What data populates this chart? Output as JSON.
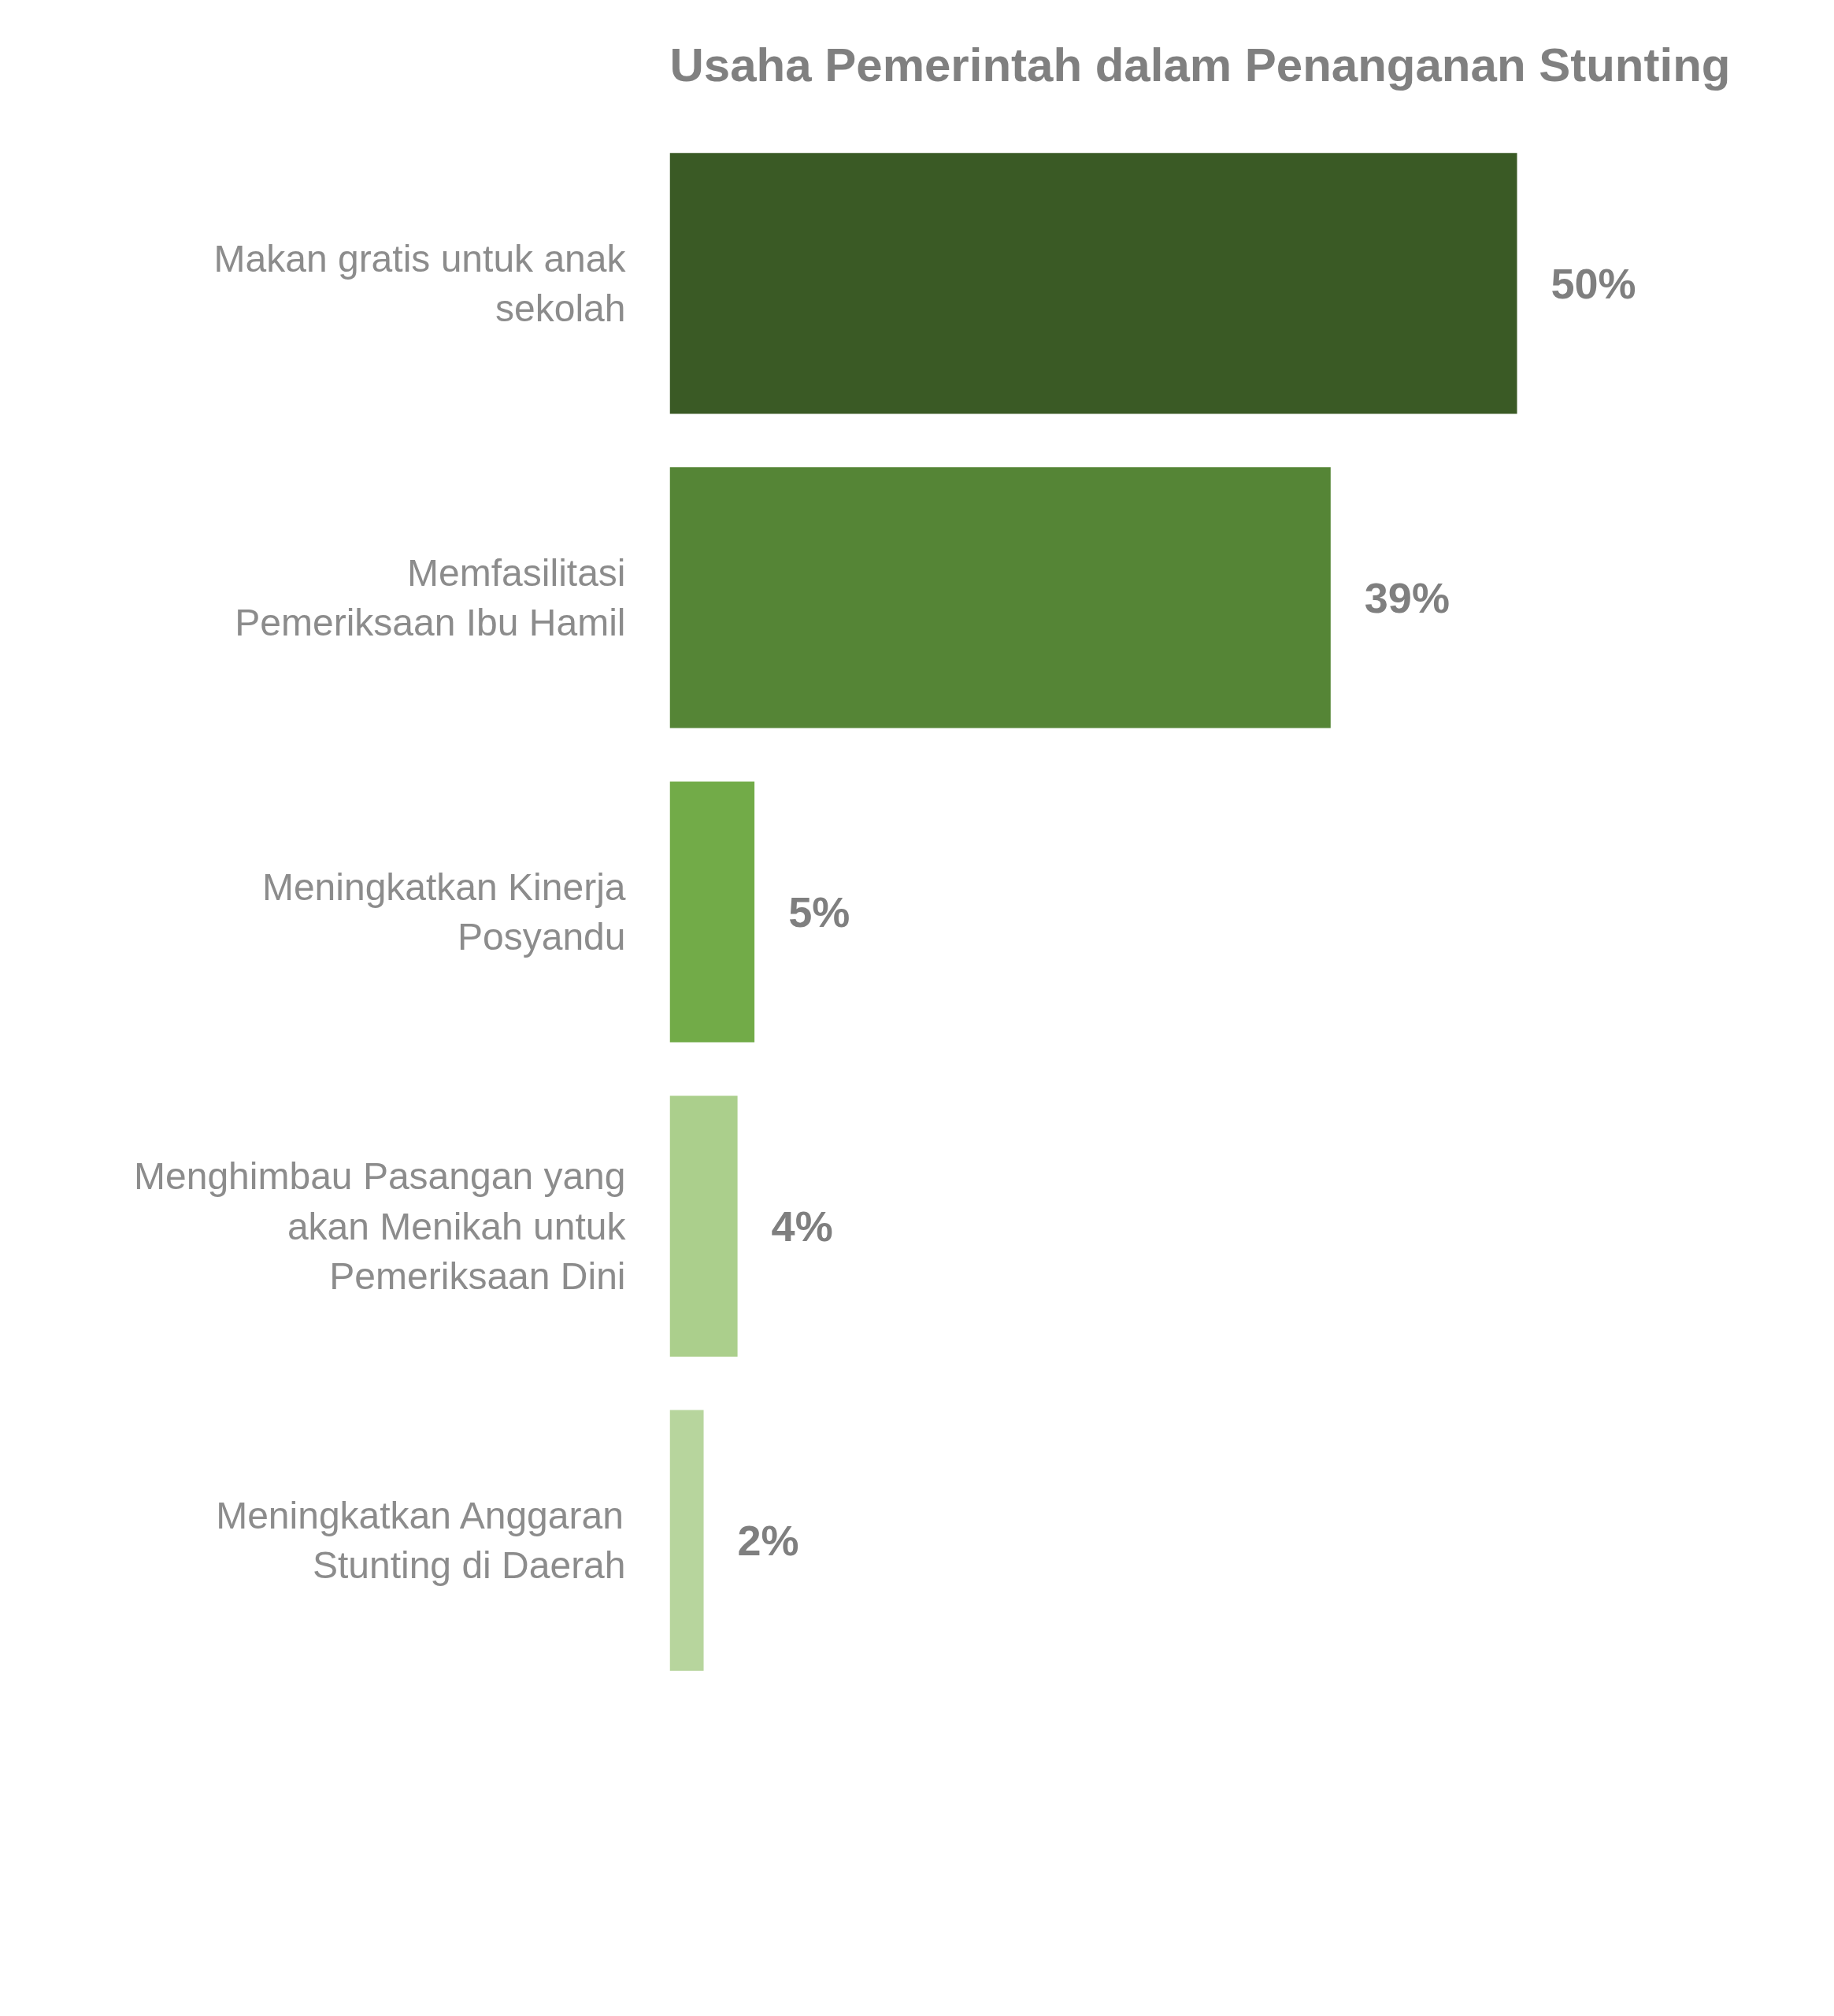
{
  "chart_data": {
    "type": "bar",
    "orientation": "horizontal",
    "title": "Usaha Pemerintah dalam Penanganan Stunting",
    "categories": [
      "Makan gratis untuk anak sekolah",
      "Memfasilitasi Pemeriksaan Ibu Hamil",
      "Meningkatkan Kinerja Posyandu",
      "Menghimbau Pasangan yang akan Menikah untuk Pemeriksaan Dini",
      "Meningkatkan Anggaran Stunting di Daerah"
    ],
    "values": [
      50,
      39,
      5,
      4,
      2
    ],
    "colors": [
      "#3a5a25",
      "#558536",
      "#72ab48",
      "#abcf8c",
      "#b7d59d"
    ],
    "value_labels": [
      "50%",
      "39%",
      "5%",
      "4%",
      "2%"
    ],
    "tick_labels": "y",
    "grid": false
  }
}
